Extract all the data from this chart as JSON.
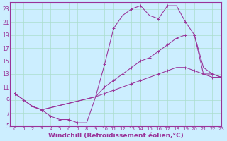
{
  "bg_color": "#cceeff",
  "line_color": "#993399",
  "grid_color": "#aaddcc",
  "xlabel": "Windchill (Refroidissement éolien,°C)",
  "xlim": [
    -0.5,
    23
  ],
  "ylim": [
    5,
    24
  ],
  "yticks": [
    5,
    7,
    9,
    11,
    13,
    15,
    17,
    19,
    21,
    23
  ],
  "xticks": [
    0,
    1,
    2,
    3,
    4,
    5,
    6,
    7,
    8,
    9,
    10,
    11,
    12,
    13,
    14,
    15,
    16,
    17,
    18,
    19,
    20,
    21,
    22,
    23
  ],
  "line1_x": [
    0,
    1,
    2,
    3,
    4,
    5,
    6,
    7,
    8,
    9,
    10,
    11,
    12,
    13,
    14,
    15,
    16,
    17,
    18,
    19,
    20,
    21,
    22,
    23
  ],
  "line1_y": [
    10,
    9,
    8,
    7.5,
    6.5,
    6,
    6,
    5.5,
    5.5,
    9.5,
    14.5,
    20,
    22,
    23,
    23.5,
    22,
    21.5,
    23.5,
    23.5,
    21,
    19,
    14,
    13,
    12.5
  ],
  "line2_x": [
    0,
    2,
    3,
    9,
    10,
    11,
    12,
    13,
    14,
    15,
    16,
    17,
    18,
    19,
    20,
    21,
    22,
    23
  ],
  "line2_y": [
    10,
    8,
    7.5,
    9.5,
    11,
    12,
    13,
    14,
    15,
    15.5,
    16.5,
    17.5,
    18.5,
    19,
    19,
    13,
    13,
    12.5
  ],
  "line3_x": [
    0,
    2,
    3,
    9,
    10,
    11,
    12,
    13,
    14,
    15,
    16,
    17,
    18,
    19,
    20,
    21,
    22,
    23
  ],
  "line3_y": [
    10,
    8,
    7.5,
    9.5,
    10,
    10.5,
    11,
    11.5,
    12,
    12.5,
    13,
    13.5,
    14,
    14,
    13.5,
    13,
    12.5,
    12.5
  ]
}
